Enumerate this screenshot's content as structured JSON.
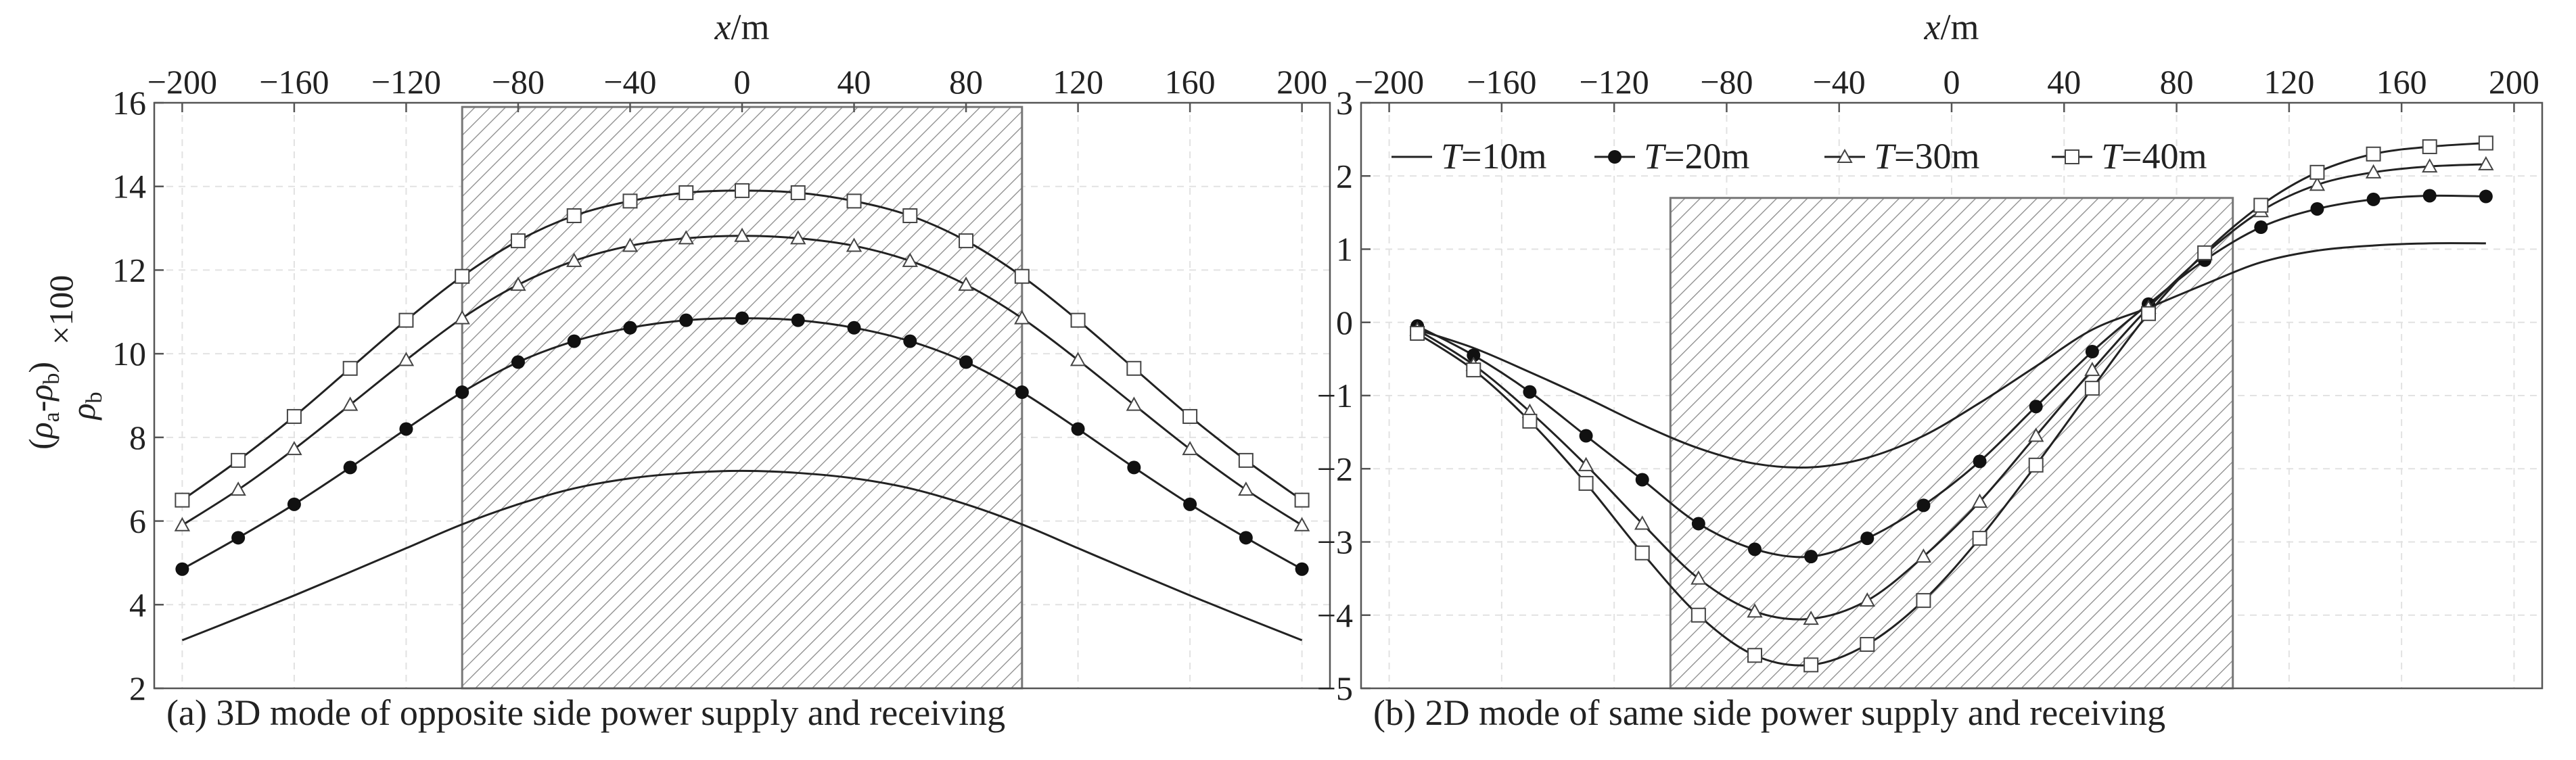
{
  "chart_data": [
    {
      "type": "line",
      "title": "",
      "caption": "(a) 3D mode of opposite side power supply and receiving",
      "xlabel_var": "x",
      "xlabel_unit": "/m",
      "ylabel": "(ρa-ρb)/ρb ×100",
      "xlim": [
        -210,
        210
      ],
      "ylim": [
        2,
        16
      ],
      "xticks": [
        -200,
        -160,
        -120,
        -80,
        -40,
        0,
        40,
        80,
        120,
        160,
        200
      ],
      "xtick_labels": [
        "−200",
        "−160",
        "−120",
        "−80",
        "−40",
        "0",
        "40",
        "80",
        "120",
        "160",
        "200"
      ],
      "yticks": [
        2,
        4,
        6,
        8,
        10,
        12,
        14,
        16
      ],
      "ytick_labels": [
        "2",
        "4",
        "6",
        "8",
        "10",
        "12",
        "14",
        "16"
      ],
      "grid": true,
      "shaded_region": {
        "x": [
          -100,
          100
        ],
        "y": [
          2,
          15.9
        ]
      },
      "x": [
        -200,
        -180,
        -160,
        -140,
        -120,
        -100,
        -80,
        -60,
        -40,
        -20,
        0,
        20,
        40,
        60,
        80,
        100,
        120,
        140,
        160,
        180,
        200
      ],
      "series": [
        {
          "name": "T=10m",
          "marker": "none",
          "values": [
            3.15,
            3.68,
            4.22,
            4.78,
            5.35,
            5.92,
            6.4,
            6.78,
            7.02,
            7.15,
            7.2,
            7.15,
            7.02,
            6.78,
            6.4,
            5.92,
            5.35,
            4.78,
            4.22,
            3.68,
            3.15
          ]
        },
        {
          "name": "T=20m",
          "marker": "filled-circle",
          "values": [
            4.85,
            5.6,
            6.4,
            7.28,
            8.2,
            9.08,
            9.8,
            10.3,
            10.62,
            10.8,
            10.85,
            10.8,
            10.62,
            10.3,
            9.8,
            9.08,
            8.2,
            7.28,
            6.4,
            5.6,
            4.85
          ]
        },
        {
          "name": "T=30m",
          "marker": "open-triangle",
          "values": [
            5.9,
            6.75,
            7.72,
            8.78,
            9.85,
            10.85,
            11.65,
            12.22,
            12.58,
            12.76,
            12.82,
            12.76,
            12.58,
            12.22,
            11.65,
            10.85,
            9.85,
            8.78,
            7.72,
            6.75,
            5.9
          ]
        },
        {
          "name": "T=40m",
          "marker": "open-square",
          "values": [
            6.5,
            7.45,
            8.5,
            9.65,
            10.8,
            11.85,
            12.7,
            13.3,
            13.65,
            13.85,
            13.9,
            13.85,
            13.65,
            13.3,
            12.7,
            11.85,
            10.8,
            9.65,
            8.5,
            7.45,
            6.5
          ]
        }
      ]
    },
    {
      "type": "line",
      "title": "",
      "caption": "(b) 2D mode of same side power supply and receiving",
      "xlabel_var": "x",
      "xlabel_unit": "/m",
      "ylabel": "",
      "xlim": [
        -210,
        210
      ],
      "ylim": [
        -5,
        3
      ],
      "xticks": [
        -200,
        -160,
        -120,
        -80,
        -40,
        0,
        40,
        80,
        120,
        160,
        200
      ],
      "xtick_labels": [
        "−200",
        "−160",
        "−120",
        "−80",
        "−40",
        "0",
        "40",
        "80",
        "120",
        "160",
        "200"
      ],
      "yticks": [
        -5,
        -4,
        -3,
        -2,
        -1,
        0,
        1,
        2,
        3
      ],
      "ytick_labels": [
        "−5",
        "−4",
        "−3",
        "−2",
        "−1",
        "0",
        "1",
        "2",
        "3"
      ],
      "grid": true,
      "shaded_region": {
        "x": [
          -100,
          100
        ],
        "y": [
          -5,
          1.7
        ]
      },
      "legend": [
        "T=10m",
        "T=20m",
        "T=30m",
        "T=40m"
      ],
      "legend_position": "top",
      "x": [
        -190,
        -170,
        -150,
        -130,
        -110,
        -90,
        -70,
        -50,
        -30,
        -10,
        10,
        30,
        50,
        70,
        90,
        110,
        130,
        150,
        170,
        190
      ],
      "series": [
        {
          "name": "T=10m",
          "marker": "none",
          "values": [
            -0.1,
            -0.35,
            -0.68,
            -1.03,
            -1.4,
            -1.72,
            -1.93,
            -1.98,
            -1.85,
            -1.55,
            -1.1,
            -0.6,
            -0.1,
            0.2,
            0.52,
            0.82,
            0.98,
            1.05,
            1.08,
            1.08
          ]
        },
        {
          "name": "T=20m",
          "marker": "filled-circle",
          "values": [
            -0.05,
            -0.45,
            -0.95,
            -1.55,
            -2.15,
            -2.75,
            -3.1,
            -3.2,
            -2.95,
            -2.5,
            -1.9,
            -1.15,
            -0.4,
            0.25,
            0.85,
            1.3,
            1.55,
            1.68,
            1.73,
            1.72
          ]
        },
        {
          "name": "T=30m",
          "marker": "open-triangle",
          "values": [
            -0.1,
            -0.58,
            -1.22,
            -1.95,
            -2.75,
            -3.5,
            -3.95,
            -4.05,
            -3.8,
            -3.2,
            -2.45,
            -1.55,
            -0.65,
            0.2,
            0.93,
            1.52,
            1.88,
            2.05,
            2.13,
            2.16
          ]
        },
        {
          "name": "T=40m",
          "marker": "open-square",
          "values": [
            -0.15,
            -0.65,
            -1.35,
            -2.2,
            -3.15,
            -4.0,
            -4.55,
            -4.68,
            -4.4,
            -3.8,
            -2.95,
            -1.95,
            -0.9,
            0.12,
            0.95,
            1.6,
            2.05,
            2.3,
            2.4,
            2.45
          ]
        }
      ]
    }
  ]
}
